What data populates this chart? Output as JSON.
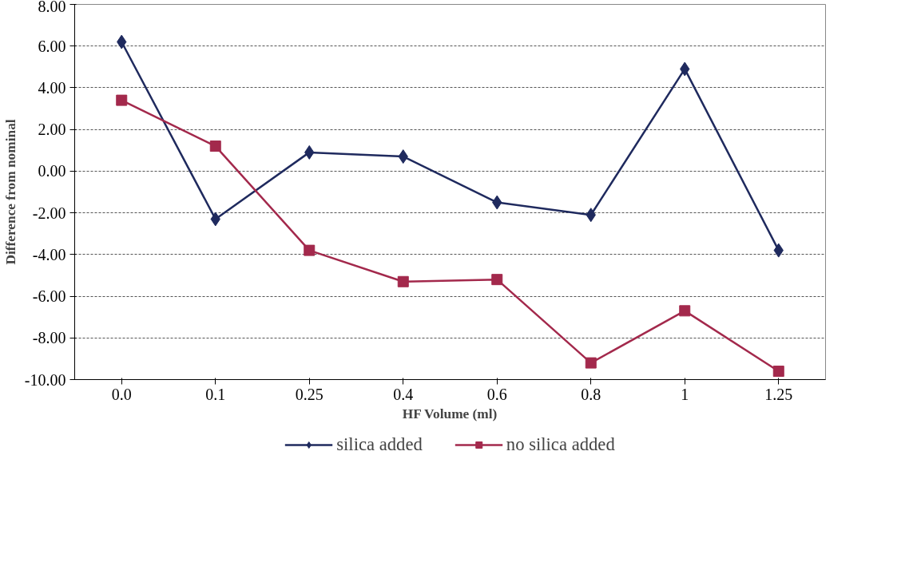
{
  "chart_data": {
    "type": "line",
    "xlabel": "HF Volume (ml)",
    "ylabel": "Difference from nominal",
    "categories": [
      "0.0",
      "0.1",
      "0.25",
      "0.4",
      "0.6",
      "0.8",
      "1",
      "1.25"
    ],
    "series": [
      {
        "name": "silica added",
        "color": "#1f2a5e",
        "marker": "diamond",
        "values": [
          6.2,
          -2.3,
          0.9,
          0.7,
          -1.5,
          -2.1,
          4.9,
          -3.8
        ]
      },
      {
        "name": "no silica added",
        "color": "#a3294c",
        "marker": "square",
        "values": [
          3.4,
          1.2,
          -3.8,
          -5.3,
          -5.2,
          -9.2,
          -6.7,
          -9.6
        ]
      }
    ],
    "ylim": [
      -10,
      8
    ],
    "yticks": [
      {
        "value": -10,
        "label": "-10.00"
      },
      {
        "value": -8,
        "label": "-8.00"
      },
      {
        "value": -6,
        "label": "-6.00"
      },
      {
        "value": -4,
        "label": "-4.00"
      },
      {
        "value": -2,
        "label": "-2.00"
      },
      {
        "value": 0,
        "label": "0.00"
      },
      {
        "value": 2,
        "label": "2.00"
      },
      {
        "value": 4,
        "label": "4.00"
      },
      {
        "value": 6,
        "label": "6.00"
      },
      {
        "value": 8,
        "label": "8.00"
      }
    ],
    "grid": "y",
    "legend": "bottom",
    "line_style": "solid"
  }
}
